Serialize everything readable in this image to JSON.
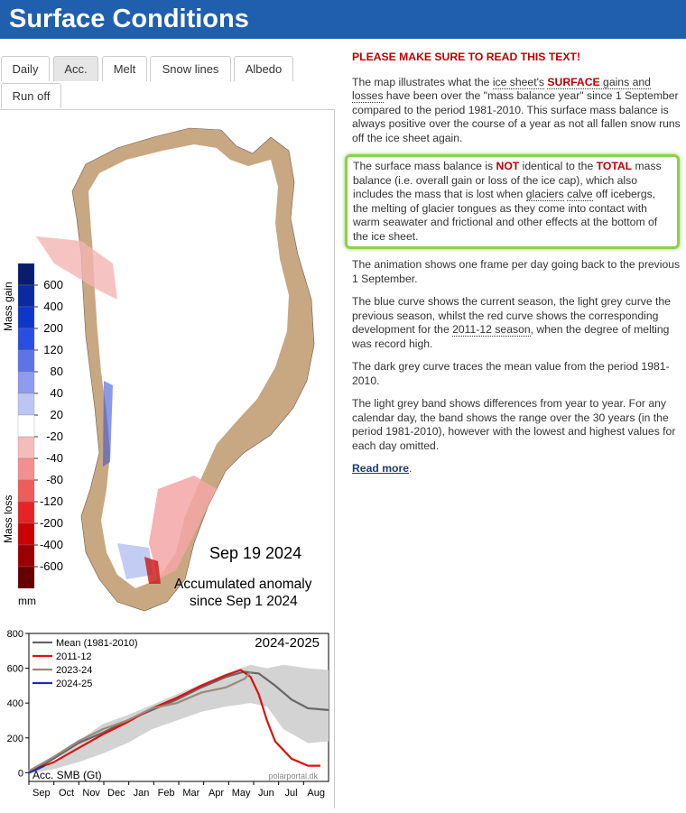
{
  "header": {
    "title": "Surface Conditions"
  },
  "tabs": [
    {
      "label": "Daily",
      "active": false
    },
    {
      "label": "Acc.",
      "active": true
    },
    {
      "label": "Melt",
      "active": false
    },
    {
      "label": "Snow lines",
      "active": false
    },
    {
      "label": "Albedo",
      "active": false
    },
    {
      "label": "Run off",
      "active": false
    }
  ],
  "map": {
    "date": "Sep 19 2024",
    "caption_line1": "Accumulated anomaly",
    "caption_line2": "since Sep 1 2024",
    "legend": {
      "gain_label": "Mass gain",
      "loss_label": "Mass loss",
      "unit": "mm",
      "ticks": [
        "600",
        "400",
        "200",
        "120",
        "80",
        "40",
        "20",
        "-20",
        "-40",
        "-80",
        "-120",
        "-200",
        "-400",
        "-600"
      ],
      "colors": [
        "#081d6b",
        "#0a2a9e",
        "#1036c8",
        "#2a4fe0",
        "#5c74e6",
        "#8d9cec",
        "#bcc6f3",
        "#ffffff",
        "#f5bcbc",
        "#f28f8f",
        "#ee5c5c",
        "#e52525",
        "#cc0000",
        "#990000",
        "#660000"
      ]
    }
  },
  "chart_data": {
    "type": "line",
    "title": "2024-2025",
    "ylabel": "Acc. SMB (Gt)",
    "xticks": [
      "Sep",
      "Oct",
      "Nov",
      "Dec",
      "Jan",
      "Feb",
      "Mar",
      "Apr",
      "May",
      "Jun",
      "Jul",
      "Aug"
    ],
    "yticks": [
      0,
      200,
      400,
      600,
      800
    ],
    "ylim": [
      -50,
      800
    ],
    "xlim": [
      0,
      365
    ],
    "watermark": "polarportal.dk",
    "band": {
      "upper": [
        [
          0,
          20
        ],
        [
          30,
          60
        ],
        [
          60,
          180
        ],
        [
          90,
          280
        ],
        [
          120,
          330
        ],
        [
          150,
          390
        ],
        [
          180,
          450
        ],
        [
          210,
          510
        ],
        [
          240,
          570
        ],
        [
          270,
          620
        ],
        [
          290,
          600
        ],
        [
          310,
          620
        ],
        [
          340,
          600
        ],
        [
          365,
          590
        ]
      ],
      "lower": [
        [
          0,
          -5
        ],
        [
          30,
          20
        ],
        [
          60,
          60
        ],
        [
          90,
          110
        ],
        [
          120,
          170
        ],
        [
          150,
          250
        ],
        [
          180,
          300
        ],
        [
          210,
          350
        ],
        [
          240,
          380
        ],
        [
          270,
          400
        ],
        [
          290,
          380
        ],
        [
          310,
          250
        ],
        [
          340,
          170
        ],
        [
          365,
          180
        ]
      ]
    },
    "series": [
      {
        "name": "Mean (1981-2010)",
        "color": "#666666",
        "values": [
          [
            0,
            0
          ],
          [
            30,
            80
          ],
          [
            60,
            170
          ],
          [
            90,
            230
          ],
          [
            120,
            300
          ],
          [
            150,
            360
          ],
          [
            180,
            420
          ],
          [
            210,
            490
          ],
          [
            240,
            550
          ],
          [
            262,
            580
          ],
          [
            280,
            570
          ],
          [
            300,
            500
          ],
          [
            320,
            420
          ],
          [
            340,
            370
          ],
          [
            365,
            360
          ]
        ]
      },
      {
        "name": "2011-12",
        "color": "#dd1111",
        "values": [
          [
            0,
            10
          ],
          [
            30,
            60
          ],
          [
            60,
            140
          ],
          [
            90,
            220
          ],
          [
            120,
            290
          ],
          [
            150,
            370
          ],
          [
            180,
            430
          ],
          [
            210,
            500
          ],
          [
            240,
            560
          ],
          [
            258,
            590
          ],
          [
            270,
            550
          ],
          [
            280,
            450
          ],
          [
            290,
            300
          ],
          [
            300,
            180
          ],
          [
            320,
            80
          ],
          [
            340,
            40
          ],
          [
            355,
            40
          ]
        ]
      },
      {
        "name": "2023-24",
        "color": "#9a8a7a",
        "values": [
          [
            0,
            10
          ],
          [
            30,
            90
          ],
          [
            60,
            180
          ],
          [
            90,
            250
          ],
          [
            120,
            300
          ],
          [
            150,
            370
          ],
          [
            180,
            400
          ],
          [
            210,
            460
          ],
          [
            240,
            490
          ],
          [
            263,
            540
          ],
          [
            270,
            580
          ]
        ]
      },
      {
        "name": "2024-25",
        "color": "#1a2fa8",
        "values": [
          [
            0,
            0
          ],
          [
            10,
            20
          ],
          [
            19,
            40
          ]
        ]
      }
    ]
  },
  "right": {
    "warning": "PLEASE MAKE SURE TO READ THIS TEXT!",
    "p1_a": "The map illustrates what the ",
    "p1_link": "ice sheet's",
    "p1_b": " ",
    "p1_surface": "SURFACE",
    "p1_c": " gains and losses",
    "p1_d": " have been over the \"mass balance year\" since 1 September compared to the period 1981-2010. This surface mass balance is always positive over the course of a year as not all fallen snow runs off the ice sheet again.",
    "p2_a": "The surface mass balance is ",
    "p2_not": "NOT",
    "p2_b": " identical to the ",
    "p2_total": "TOTAL",
    "p2_c": " mass balance (i.e. overall gain or loss of the ice cap), which also includes the mass that is lost when ",
    "p2_glaciers": "glaciers",
    "p2_calve": "calve",
    "p2_d": " off icebergs, the melting of glacier tongues as they come into contact with warm seawater and frictional and other effects at the bottom of the ice sheet.",
    "p3": "The animation shows one frame per day going back to the previous 1 September.",
    "p4_a": "The blue curve shows the current season, the light grey curve the previous season, whilst the red curve shows the corresponding development for the ",
    "p4_link": "2011-12 season",
    "p4_b": ", when the degree of melting was record high.",
    "p5": "The dark grey curve traces the mean value from the period 1981-2010.",
    "p6": "The light grey band shows differences from year to year. For any calendar day, the band shows the range over the 30 years (in the period 1981-2010), however with the lowest and highest values for each day omitted.",
    "read_more": "Read more",
    "read_more_tail": "."
  }
}
